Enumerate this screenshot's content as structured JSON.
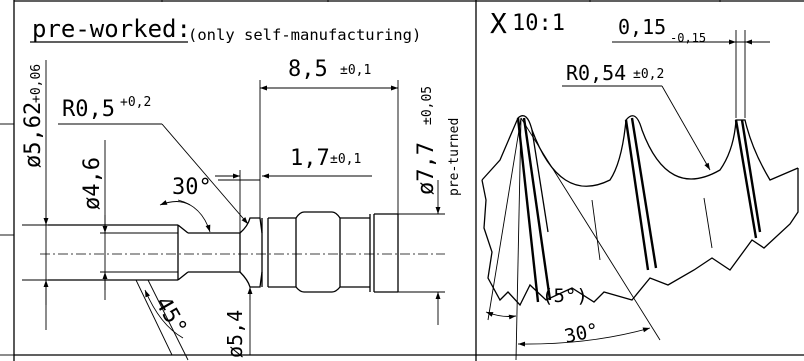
{
  "left_view": {
    "title": "pre-worked:",
    "title_note": "(only self-manufacturing)",
    "dim_length_total": "8,5",
    "dim_length_total_tol": "±0,1",
    "dim_length_small": "1,7",
    "dim_length_small_tol": "±0,1",
    "dim_dia_outer": "ø5,62",
    "dim_dia_outer_tol": "+0,06",
    "dim_radius": "R0,5",
    "dim_radius_tol": "+0,2",
    "dim_dia_inner": "ø4,6",
    "dim_angle_30": "30°",
    "dim_angle_45": "45°",
    "dim_dia_groove": "ø5,4",
    "dim_dia_pre": "ø7,7",
    "dim_dia_pre_tol": "±0,05",
    "pre_turned": "pre-turned"
  },
  "right_view": {
    "detail_mark": "X",
    "scale": "10:1",
    "dim_flat": "0,15",
    "dim_flat_tol": "-0,15",
    "dim_radius": "R0,54",
    "dim_radius_tol": "±0,2",
    "angle_small": "(5°)",
    "angle_large": "30°"
  }
}
